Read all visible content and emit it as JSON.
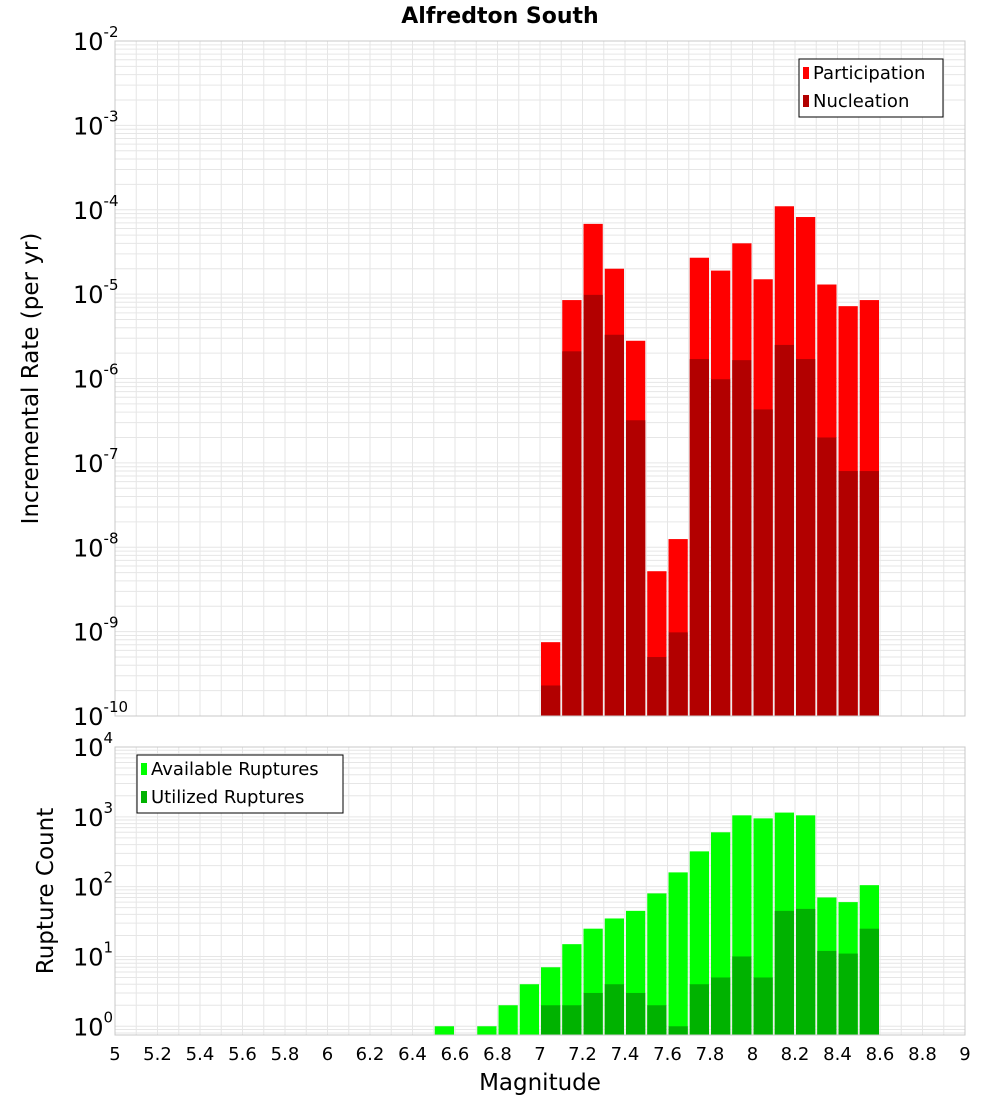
{
  "title": "Alfredton South",
  "colors": {
    "participation": "#ff0000",
    "nucleation": "#b20000",
    "available": "#00ff00",
    "utilized": "#00b200",
    "grid": "#e6e6e6",
    "frame": "#c8c8c8",
    "bar_outline": "#ffffff"
  },
  "chart_data": [
    {
      "type": "bar",
      "name": "rate-panel",
      "title": "Alfredton South",
      "xlabel": "Magnitude",
      "ylabel": "Incremental Rate (per yr)",
      "yscale": "log",
      "ylim": [
        1e-10,
        0.01
      ],
      "xlim": [
        5,
        9
      ],
      "grid": true,
      "legend_position": "top-right",
      "yticks": [
        {
          "base": "10",
          "exp": "-10"
        },
        {
          "base": "10",
          "exp": "-9"
        },
        {
          "base": "10",
          "exp": "-8"
        },
        {
          "base": "10",
          "exp": "-7"
        },
        {
          "base": "10",
          "exp": "-6"
        },
        {
          "base": "10",
          "exp": "-5"
        },
        {
          "base": "10",
          "exp": "-4"
        },
        {
          "base": "10",
          "exp": "-3"
        },
        {
          "base": "10",
          "exp": "-2"
        }
      ],
      "x": [
        7.05,
        7.15,
        7.25,
        7.35,
        7.45,
        7.55,
        7.65,
        7.75,
        7.85,
        7.95,
        8.05,
        8.15,
        8.25,
        8.35,
        8.45,
        8.55
      ],
      "series": [
        {
          "name": "Participation",
          "color_key": "participation",
          "values": [
            7.5e-10,
            8.5e-06,
            6.8e-05,
            2e-05,
            2.8e-06,
            5.2e-09,
            1.25e-08,
            2.7e-05,
            1.9e-05,
            4e-05,
            1.5e-05,
            0.00011,
            8.2e-05,
            1.3e-05,
            7.2e-06,
            8.5e-06
          ]
        },
        {
          "name": "Nucleation",
          "color_key": "nucleation",
          "values": [
            2.3e-10,
            2.1e-06,
            9.8e-06,
            3.3e-06,
            3.2e-07,
            5e-10,
            9.8e-10,
            1.7e-06,
            9.8e-07,
            1.65e-06,
            4.3e-07,
            2.5e-06,
            1.7e-06,
            2e-07,
            8e-08,
            8e-08
          ]
        }
      ]
    },
    {
      "type": "bar",
      "name": "count-panel",
      "xlabel": "Magnitude",
      "ylabel": "Rupture Count",
      "yscale": "log",
      "ylim": [
        0.75,
        10000
      ],
      "xlim": [
        5,
        9
      ],
      "grid": true,
      "legend_position": "top-left",
      "yticks": [
        {
          "base": "10",
          "exp": "0"
        },
        {
          "base": "10",
          "exp": "1"
        },
        {
          "base": "10",
          "exp": "2"
        },
        {
          "base": "10",
          "exp": "3"
        },
        {
          "base": "10",
          "exp": "4"
        }
      ],
      "x": [
        6.55,
        6.75,
        6.85,
        6.95,
        7.05,
        7.15,
        7.25,
        7.35,
        7.45,
        7.55,
        7.65,
        7.75,
        7.85,
        7.95,
        8.05,
        8.15,
        8.25,
        8.35,
        8.45,
        8.55
      ],
      "series": [
        {
          "name": "Available Ruptures",
          "color_key": "available",
          "values": [
            1,
            1,
            2,
            4,
            7,
            15,
            25,
            35,
            45,
            80,
            160,
            320,
            600,
            1050,
            950,
            1150,
            1050,
            70,
            60,
            105
          ]
        },
        {
          "name": "Utilized Ruptures",
          "color_key": "utilized",
          "values": [
            0,
            0,
            0,
            0,
            2,
            2,
            3,
            4,
            3,
            2,
            1,
            4,
            5,
            10,
            5,
            45,
            48,
            12,
            11,
            25
          ]
        }
      ]
    }
  ],
  "x_tick_labels": [
    "5",
    "5.2",
    "5.4",
    "5.6",
    "5.8",
    "6",
    "6.2",
    "6.4",
    "6.6",
    "6.8",
    "7",
    "7.2",
    "7.4",
    "7.6",
    "7.8",
    "8",
    "8.2",
    "8.4",
    "8.6",
    "8.8",
    "9"
  ]
}
